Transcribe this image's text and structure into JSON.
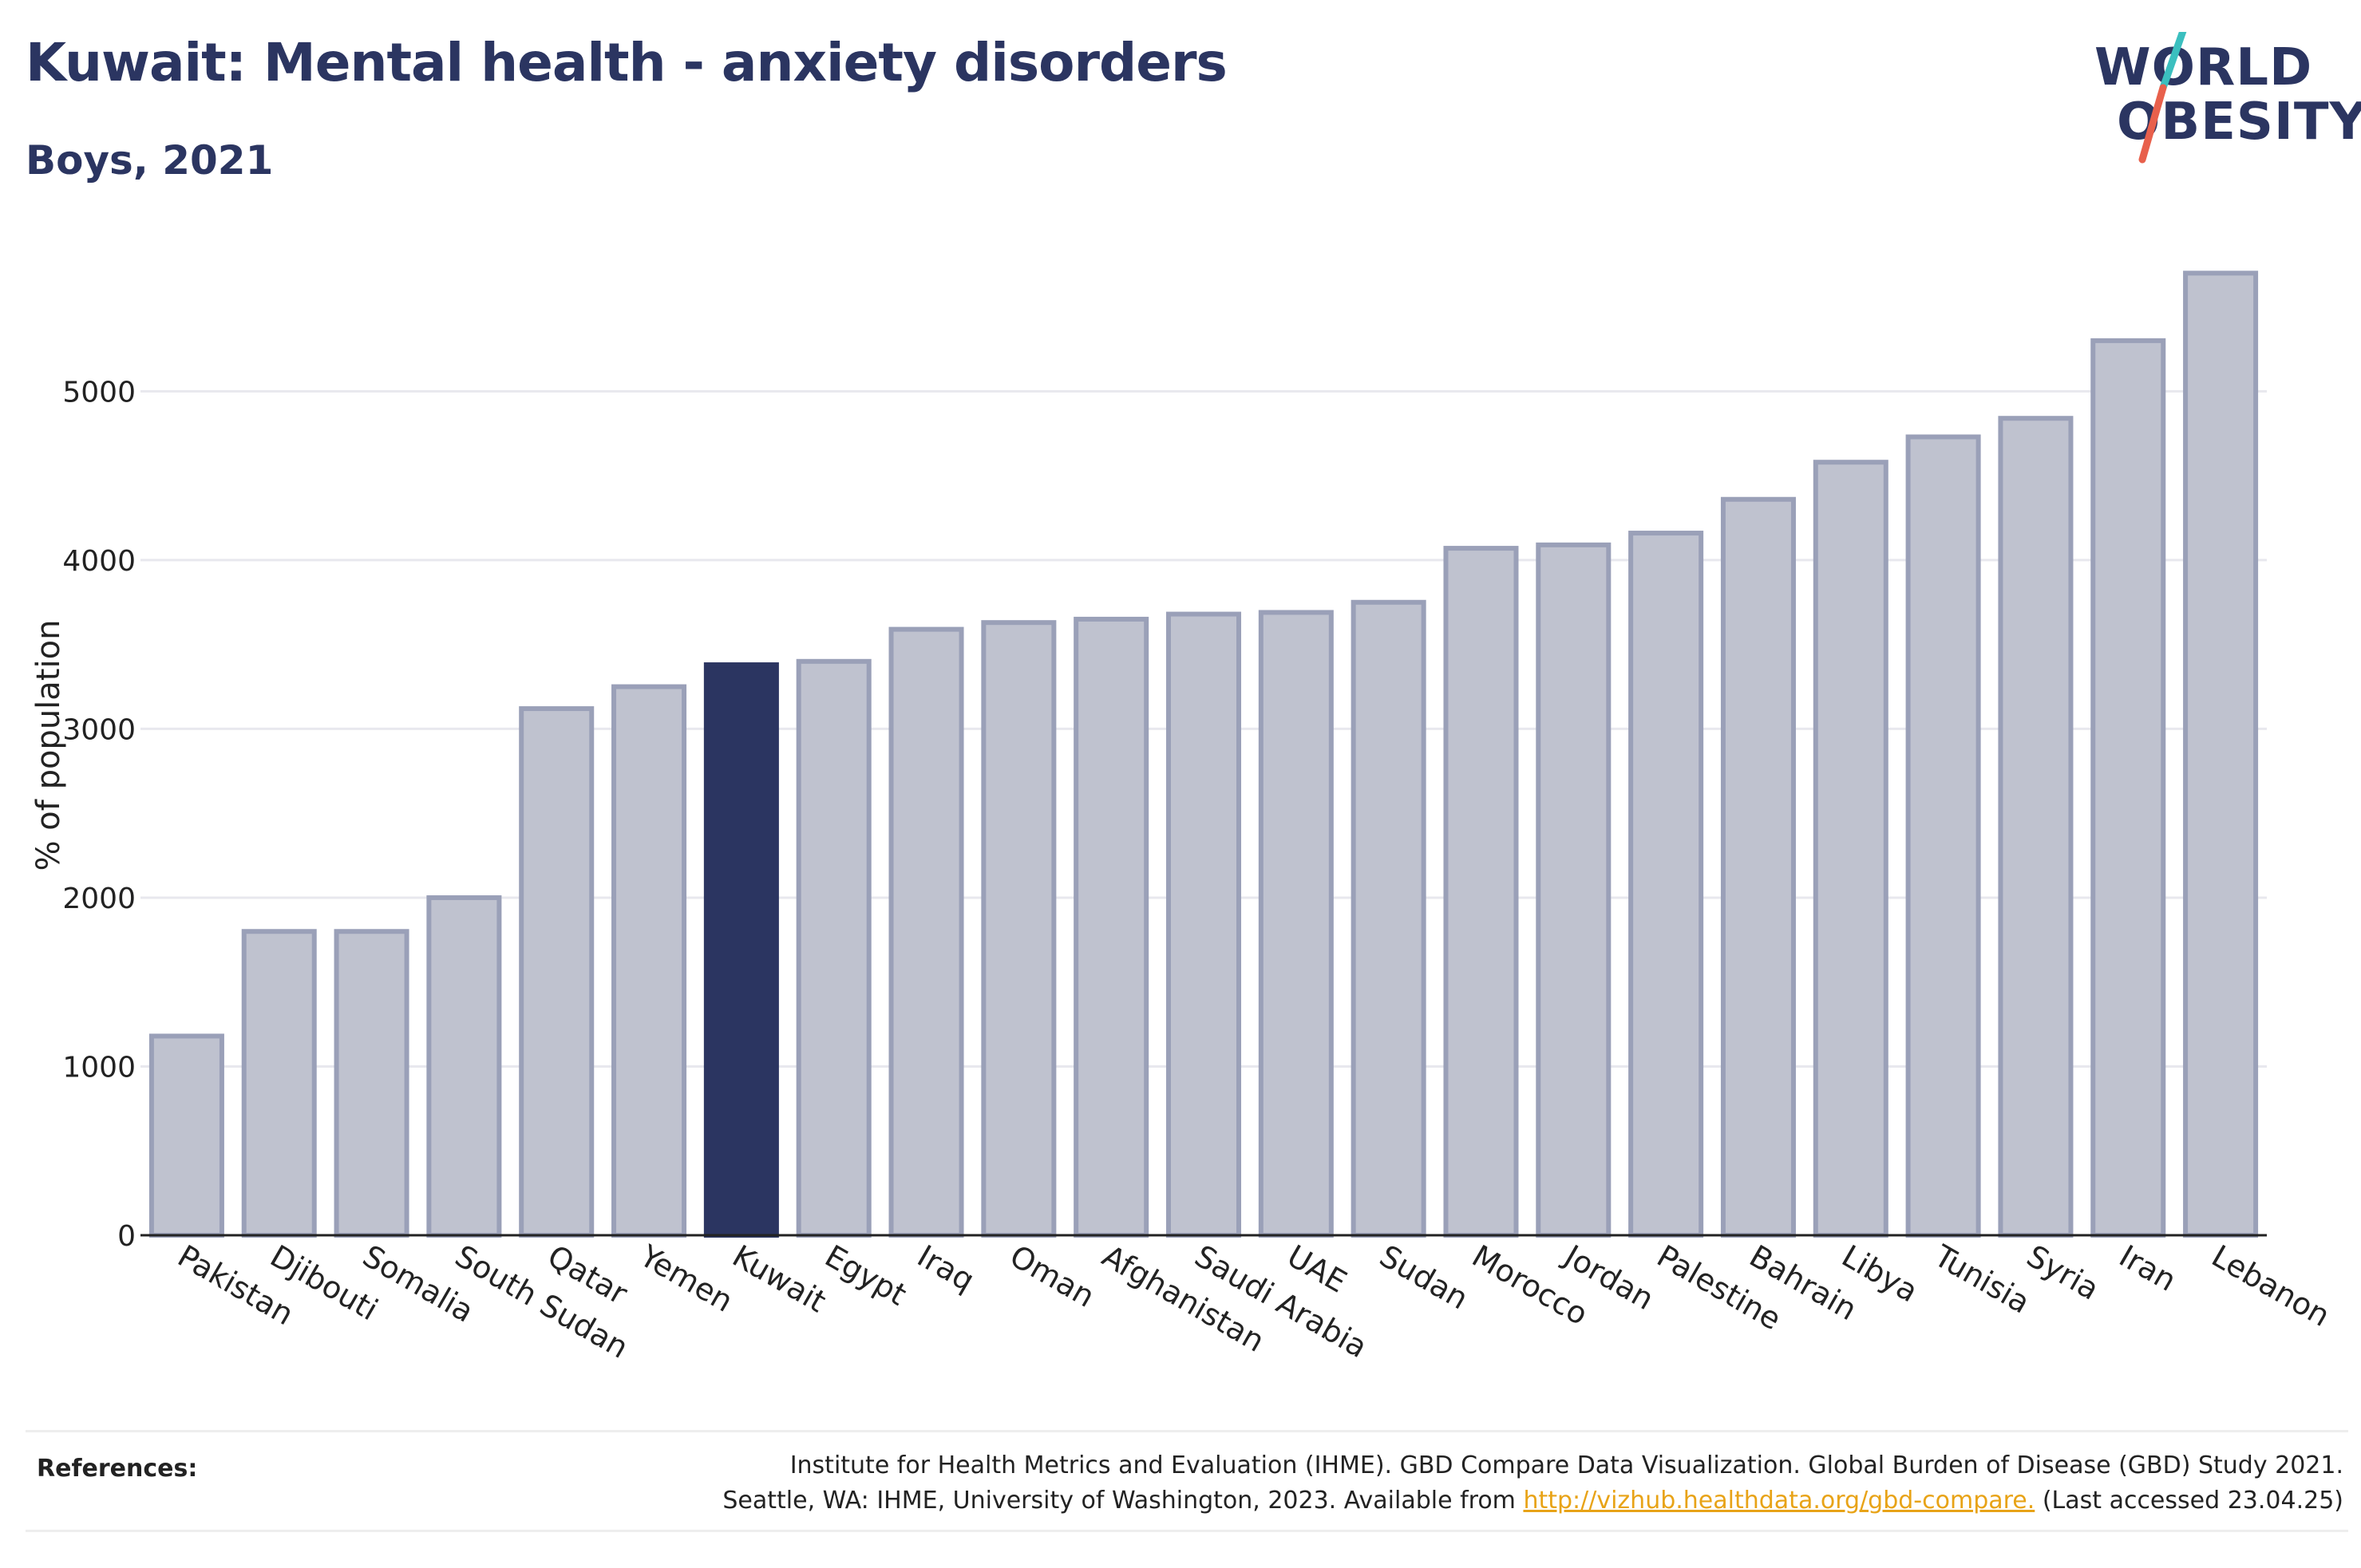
{
  "header": {
    "title": "Kuwait: Mental health - anxiety disorders",
    "subtitle": "Boys, 2021"
  },
  "logo": {
    "line1": "WORLD",
    "line2": "OBESITY",
    "slash_colors": [
      "#3bbfbf",
      "#e8604c"
    ]
  },
  "colors": {
    "highlight_bar": "#2b3561",
    "bar_fill": "#bfc2cf",
    "bar_stroke": "#9aa0b8",
    "gridline": "#e8e8ee",
    "axis": "#222222"
  },
  "chart_data": {
    "type": "bar",
    "ylabel": "% of population",
    "xlabel": "",
    "ylim": [
      0,
      5900
    ],
    "yticks": [
      0,
      1000,
      2000,
      3000,
      4000,
      5000
    ],
    "grid": true,
    "highlight": "Kuwait",
    "categories": [
      "Pakistan",
      "Djibouti",
      "Somalia",
      "South Sudan",
      "Qatar",
      "Yemen",
      "Kuwait",
      "Egypt",
      "Iraq",
      "Oman",
      "Afghanistan",
      "Saudi Arabia",
      "UAE",
      "Sudan",
      "Morocco",
      "Jordan",
      "Palestine",
      "Bahrain",
      "Libya",
      "Tunisia",
      "Syria",
      "Iran",
      "Lebanon"
    ],
    "values": [
      1180,
      1800,
      1800,
      2000,
      3120,
      3250,
      3380,
      3400,
      3590,
      3630,
      3650,
      3680,
      3690,
      3750,
      4070,
      4090,
      4160,
      4360,
      4580,
      4730,
      4840,
      5300,
      5700
    ]
  },
  "references": {
    "label": "References:",
    "line1": "Institute for Health Metrics and Evaluation (IHME). GBD Compare Data Visualization. Global Burden of Disease (GBD) Study 2021.",
    "line2_prefix": "Seattle, WA: IHME, University of Washington, 2023. Available from ",
    "link": "http://vizhub.healthdata.org/gbd-compare.",
    "line2_suffix": " (Last accessed 23.04.25)"
  }
}
